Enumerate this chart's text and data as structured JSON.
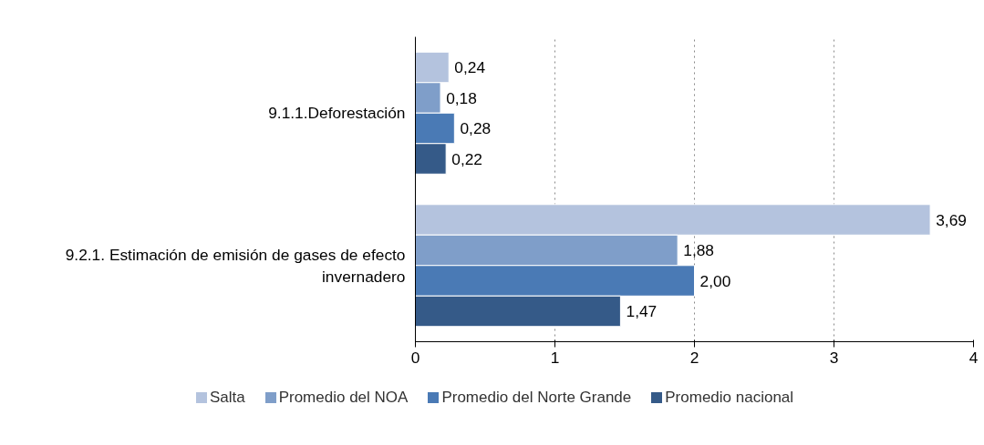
{
  "chart_data": {
    "type": "bar",
    "orientation": "horizontal",
    "categories": [
      "9.1.1.Deforestación",
      "9.2.1. Estimación de emisión de gases de efecto invernadero"
    ],
    "series": [
      {
        "name": "Salta",
        "color": "#b4c3de",
        "values": [
          0.24,
          3.69
        ],
        "value_labels": [
          "0,24",
          "3,69"
        ]
      },
      {
        "name": "Promedio del NOA",
        "color": "#7f9ec9",
        "values": [
          0.18,
          1.88
        ],
        "value_labels": [
          "0,18",
          "1,88"
        ]
      },
      {
        "name": "Promedio del Norte Grande",
        "color": "#4a7ab5",
        "values": [
          0.28,
          2.0
        ],
        "value_labels": [
          "0,28",
          "2,00"
        ]
      },
      {
        "name": "Promedio nacional",
        "color": "#355a88",
        "values": [
          0.22,
          1.47
        ],
        "value_labels": [
          "0,22",
          "1,47"
        ]
      }
    ],
    "xlim": [
      0,
      4
    ],
    "xticks": [
      0,
      1,
      2,
      3,
      4
    ],
    "grid": "x",
    "legend": "bottom"
  }
}
